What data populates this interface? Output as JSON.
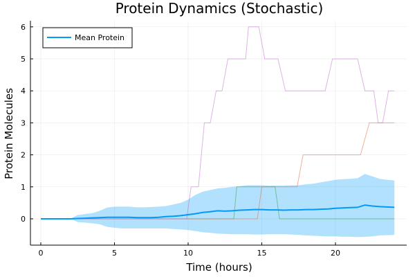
{
  "chart_data": {
    "type": "line",
    "title": "Protein Dynamics (Stochastic)",
    "xlabel": "Time (hours)",
    "ylabel": "Protein Molecules",
    "xlim": [
      -0.8,
      24.6
    ],
    "ylim": [
      -0.8,
      6.2
    ],
    "xticks": [
      0,
      5,
      10,
      15,
      20
    ],
    "yticks": [
      0,
      1,
      2,
      3,
      4,
      5,
      6
    ],
    "grid": true,
    "legend": {
      "placement": "top-left",
      "entries": [
        "Mean Protein"
      ]
    },
    "colors": {
      "mean": "#009af9",
      "band": "#009af9",
      "traj_purple": "#c271d2",
      "traj_orange": "#e26f46",
      "traj_teal": "#3da44d"
    },
    "series": [
      {
        "name": "Mean Protein",
        "role": "mean",
        "x": [
          0,
          1,
          2,
          2.5,
          3,
          3.5,
          4,
          4.5,
          5,
          5.5,
          6,
          6.5,
          7,
          7.5,
          8,
          8.5,
          9,
          9.5,
          10,
          10.5,
          11,
          11.5,
          12,
          12.5,
          13,
          13.5,
          14,
          14.5,
          15,
          15.5,
          16,
          16.5,
          17,
          17.5,
          18,
          18.5,
          19,
          19.5,
          20,
          20.5,
          21,
          21.5,
          22,
          22.5,
          23,
          23.5,
          24
        ],
        "values": [
          0,
          0,
          0,
          0.01,
          0.02,
          0.03,
          0.04,
          0.05,
          0.05,
          0.05,
          0.05,
          0.04,
          0.04,
          0.04,
          0.05,
          0.07,
          0.08,
          0.1,
          0.13,
          0.16,
          0.2,
          0.22,
          0.25,
          0.24,
          0.25,
          0.27,
          0.28,
          0.29,
          0.29,
          0.28,
          0.28,
          0.27,
          0.28,
          0.28,
          0.29,
          0.29,
          0.3,
          0.31,
          0.33,
          0.34,
          0.35,
          0.36,
          0.43,
          0.4,
          0.38,
          0.37,
          0.36
        ]
      },
      {
        "role": "band",
        "x": [
          0,
          1,
          2,
          2.5,
          3,
          3.5,
          4,
          4.5,
          5,
          5.5,
          6,
          6.5,
          7,
          7.5,
          8,
          8.5,
          9,
          9.5,
          10,
          10.5,
          11,
          11.5,
          12,
          12.5,
          13,
          13.5,
          14,
          14.5,
          15,
          15.5,
          16,
          16.5,
          17,
          17.5,
          18,
          18.5,
          19,
          19.5,
          20,
          20.5,
          21,
          21.5,
          22,
          22.5,
          23,
          23.5,
          24
        ],
        "upper": [
          0,
          0,
          0,
          0.12,
          0.15,
          0.18,
          0.25,
          0.35,
          0.38,
          0.38,
          0.38,
          0.36,
          0.36,
          0.37,
          0.38,
          0.4,
          0.45,
          0.5,
          0.6,
          0.75,
          0.85,
          0.9,
          0.95,
          0.97,
          1.0,
          1.02,
          1.05,
          1.05,
          1.05,
          1.04,
          1.04,
          1.04,
          1.05,
          1.05,
          1.08,
          1.1,
          1.14,
          1.18,
          1.22,
          1.24,
          1.25,
          1.27,
          1.4,
          1.33,
          1.25,
          1.22,
          1.2
        ],
        "lower": [
          0,
          0,
          0,
          -0.1,
          -0.12,
          -0.14,
          -0.17,
          -0.25,
          -0.28,
          -0.3,
          -0.3,
          -0.3,
          -0.3,
          -0.3,
          -0.3,
          -0.3,
          -0.32,
          -0.33,
          -0.35,
          -0.38,
          -0.42,
          -0.44,
          -0.46,
          -0.47,
          -0.48,
          -0.48,
          -0.48,
          -0.49,
          -0.49,
          -0.48,
          -0.48,
          -0.48,
          -0.49,
          -0.5,
          -0.52,
          -0.53,
          -0.54,
          -0.55,
          -0.55,
          -0.56,
          -0.56,
          -0.57,
          -0.56,
          -0.55,
          -0.52,
          -0.51,
          -0.5
        ]
      },
      {
        "role": "trajectory-purple",
        "x": [
          0,
          9.9,
          10.2,
          10.7,
          11.1,
          11.5,
          11.9,
          12.3,
          12.7,
          13.4,
          13.9,
          14.1,
          14.4,
          14.8,
          15.2,
          16.1,
          16.6,
          19.3,
          19.8,
          21.5,
          22.0,
          22.6,
          22.9,
          23.2,
          23.6,
          24.0
        ],
        "values": [
          0,
          0,
          1,
          1,
          3,
          3,
          4,
          4,
          5,
          5,
          5,
          6,
          6,
          6,
          5,
          5,
          4,
          4,
          5,
          5,
          4,
          4,
          3,
          3,
          4,
          4
        ]
      },
      {
        "role": "trajectory-orange",
        "x": [
          0,
          14.7,
          15.0,
          16.3,
          16.8,
          17.4,
          17.8,
          18.9,
          19.5,
          20.6,
          21.0,
          21.7,
          22.3,
          23.8,
          24.0
        ],
        "values": [
          0,
          0,
          1,
          1,
          1,
          1,
          2,
          2,
          2,
          2,
          2,
          2,
          3,
          3,
          3
        ]
      },
      {
        "role": "trajectory-teal",
        "x": [
          0,
          13.1,
          13.3,
          15.9,
          16.2,
          24.0
        ],
        "values": [
          0,
          0,
          1,
          1,
          0,
          0
        ]
      }
    ]
  }
}
